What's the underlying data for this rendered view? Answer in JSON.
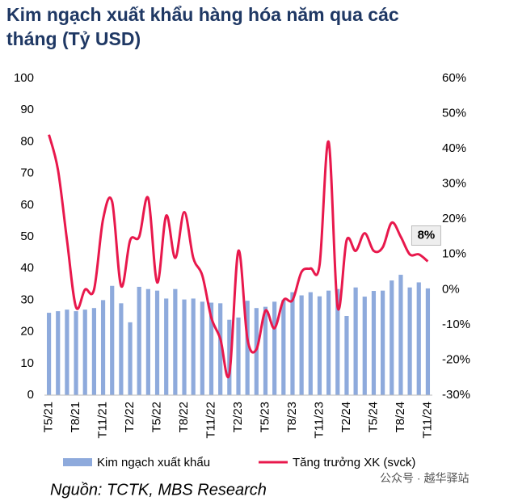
{
  "chart_data": {
    "type": "bar_line",
    "title": [
      "Kim ngạch xuất khẩu hàng hóa năm qua các",
      "tháng (Tỷ USD)"
    ],
    "source": "Nguồn: TCTK, MBS Research",
    "watermark": "公众号 · 越华驿站",
    "categories": [
      "T5/21",
      null,
      null,
      "T8/21",
      null,
      null,
      "T11/21",
      null,
      null,
      "T2/22",
      null,
      null,
      "T5/22",
      null,
      null,
      "T8/22",
      null,
      null,
      "T11/22",
      null,
      null,
      "T2/23",
      null,
      null,
      "T5/23",
      null,
      null,
      "T8/23",
      null,
      null,
      "T11/23",
      null,
      null,
      "T2/24",
      null,
      null,
      "T5/24",
      null,
      null,
      "T8/24",
      null,
      null,
      "T11/24"
    ],
    "series": [
      {
        "name": "Kim ngạch xuất khẩu",
        "color": "#8eaadc",
        "axis": "y",
        "values": [
          26,
          26.5,
          27,
          26.5,
          27,
          27.5,
          30,
          34.5,
          29,
          23,
          34.2,
          33.5,
          33,
          30.5,
          33.5,
          30.2,
          30.5,
          29.5,
          29.2,
          29,
          23.8,
          24.5,
          29.8,
          27.5,
          27.9,
          29.5,
          30,
          32.5,
          31.5,
          32.5,
          31.2,
          33,
          33.5,
          25,
          34,
          31.1,
          32.9,
          33,
          36.2,
          38,
          34,
          35.6,
          33.7
        ]
      },
      {
        "name": "Tăng trưởng XK (svck)",
        "color": "#e8184c",
        "axis": "y2",
        "values": [
          44,
          34,
          14,
          -5,
          0,
          0,
          20,
          25,
          1,
          14,
          15,
          26,
          2,
          21,
          9,
          22,
          9,
          4,
          -8,
          -14,
          -24,
          11,
          -14,
          -17,
          -6,
          -11,
          -3,
          -3,
          5,
          6,
          7,
          42,
          -5,
          14,
          11,
          16,
          11,
          12,
          19,
          15,
          10,
          10,
          8
        ],
        "value_labels": [
          null,
          null,
          null,
          null,
          null,
          null,
          null,
          null,
          null,
          null,
          null,
          null,
          null,
          null,
          null,
          null,
          null,
          null,
          null,
          null,
          null,
          null,
          null,
          null,
          null,
          null,
          null,
          null,
          null,
          null,
          null,
          null,
          null,
          null,
          null,
          null,
          null,
          null,
          null,
          null,
          null,
          null,
          "8%"
        ]
      }
    ],
    "ylim": [
      0,
      100
    ],
    "yticks": [
      0,
      10,
      20,
      30,
      40,
      50,
      60,
      70,
      80,
      90,
      100
    ],
    "y2lim": [
      -30,
      60
    ],
    "y2ticks": [
      {
        "value": -30,
        "label": "-30%"
      },
      {
        "value": -20,
        "label": "-20%"
      },
      {
        "value": -10,
        "label": "-10%"
      },
      {
        "value": 0,
        "label": "0%"
      },
      {
        "value": 10,
        "label": "10%"
      },
      {
        "value": 20,
        "label": "20%"
      },
      {
        "value": 30,
        "label": "30%"
      },
      {
        "value": 40,
        "label": "40%"
      },
      {
        "value": 50,
        "label": "50%"
      },
      {
        "value": 60,
        "label": "60%"
      }
    ],
    "legend": "bottom"
  }
}
